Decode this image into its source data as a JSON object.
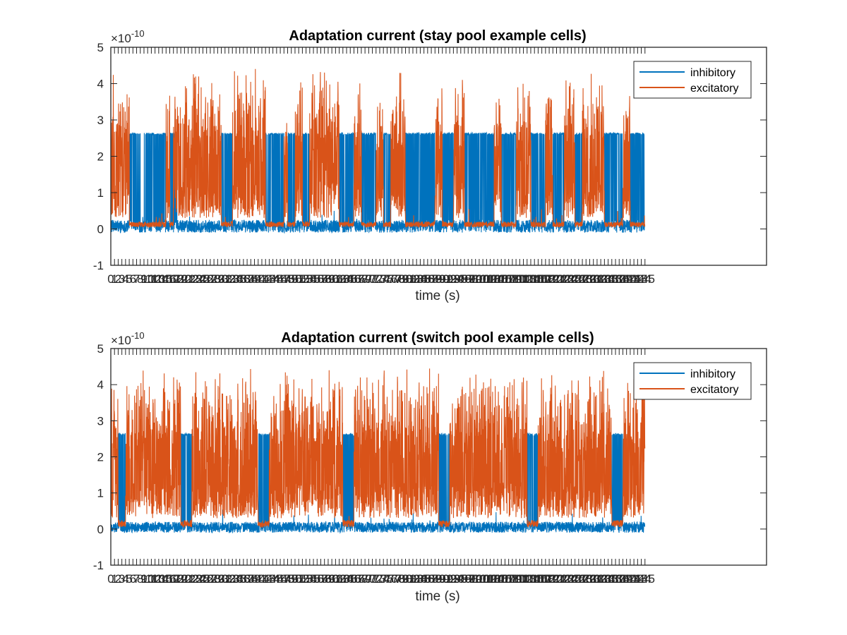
{
  "chart_data": [
    {
      "type": "line",
      "title": "Adaptation current (stay pool example cells)",
      "xlabel": "time (s)",
      "ylabel": "",
      "y_exponent_label": "×10",
      "y_exponent": "-10",
      "ylim": [
        -1,
        5
      ],
      "yticks": [
        -1,
        0,
        1,
        2,
        3,
        4,
        5
      ],
      "xlim": [
        0,
        178
      ],
      "xtick_count": 146,
      "x_data_end": 145,
      "legend": {
        "placement": "top-right",
        "entries": [
          "inhibitory",
          "excitatory"
        ]
      },
      "grid": false,
      "series": [
        {
          "name": "inhibitory",
          "color": "#0072BD",
          "baseline_range": [
            -0.1,
            0.25
          ],
          "burst_peak": 2.65,
          "bursts": [
            [
              5,
              8
            ],
            [
              9,
              15
            ],
            [
              16,
              18
            ],
            [
              30,
              33
            ],
            [
              42,
              47
            ],
            [
              48,
              50
            ],
            [
              52,
              54
            ],
            [
              62,
              66
            ],
            [
              68,
              72
            ],
            [
              74,
              76
            ],
            [
              80,
              88
            ],
            [
              90,
              93
            ],
            [
              96,
              104
            ],
            [
              106,
              110
            ],
            [
              114,
              118
            ],
            [
              120,
              123
            ],
            [
              126,
              128
            ],
            [
              134,
              139
            ],
            [
              141,
              145
            ]
          ]
        },
        {
          "name": "excitatory",
          "color": "#D95319",
          "baseline_range": [
            0.05,
            0.2
          ],
          "burst_peak_range": [
            2.5,
            4.45
          ],
          "bursts": [
            [
              0,
              5
            ],
            [
              15,
              16
            ],
            [
              17,
              30
            ],
            [
              33,
              42
            ],
            [
              47,
              48
            ],
            [
              50,
              52
            ],
            [
              54,
              62
            ],
            [
              66,
              68
            ],
            [
              72,
              74
            ],
            [
              76,
              80
            ],
            [
              88,
              90
            ],
            [
              93,
              96
            ],
            [
              104,
              106
            ],
            [
              110,
              114
            ],
            [
              118,
              120
            ],
            [
              123,
              126
            ],
            [
              128,
              134
            ],
            [
              139,
              141
            ]
          ]
        }
      ]
    },
    {
      "type": "line",
      "title": "Adaptation current (switch pool example cells)",
      "xlabel": "time (s)",
      "ylabel": "",
      "y_exponent_label": "×10",
      "y_exponent": "-10",
      "ylim": [
        -1,
        5
      ],
      "yticks": [
        -1,
        0,
        1,
        2,
        3,
        4,
        5
      ],
      "xlim": [
        0,
        178
      ],
      "xtick_count": 146,
      "x_data_end": 145,
      "legend": {
        "placement": "top-right",
        "entries": [
          "inhibitory",
          "excitatory"
        ]
      },
      "grid": false,
      "series": [
        {
          "name": "inhibitory",
          "color": "#0072BD",
          "baseline_range": [
            -0.1,
            0.2
          ],
          "burst_peak": 2.65,
          "bursts": [
            [
              2,
              4
            ],
            [
              19,
              22
            ],
            [
              40,
              43
            ],
            [
              63,
              66
            ],
            [
              89,
              92
            ],
            [
              113,
              116
            ],
            [
              136,
              139
            ]
          ]
        },
        {
          "name": "excitatory",
          "color": "#D95319",
          "baseline_range": [
            0.05,
            0.25
          ],
          "burst_peak_range": [
            2.6,
            4.5
          ],
          "bursts": [
            [
              0,
              2
            ],
            [
              4,
              19
            ],
            [
              22,
              40
            ],
            [
              43,
              63
            ],
            [
              66,
              89
            ],
            [
              92,
              113
            ],
            [
              116,
              136
            ],
            [
              139,
              145
            ]
          ]
        }
      ]
    }
  ]
}
